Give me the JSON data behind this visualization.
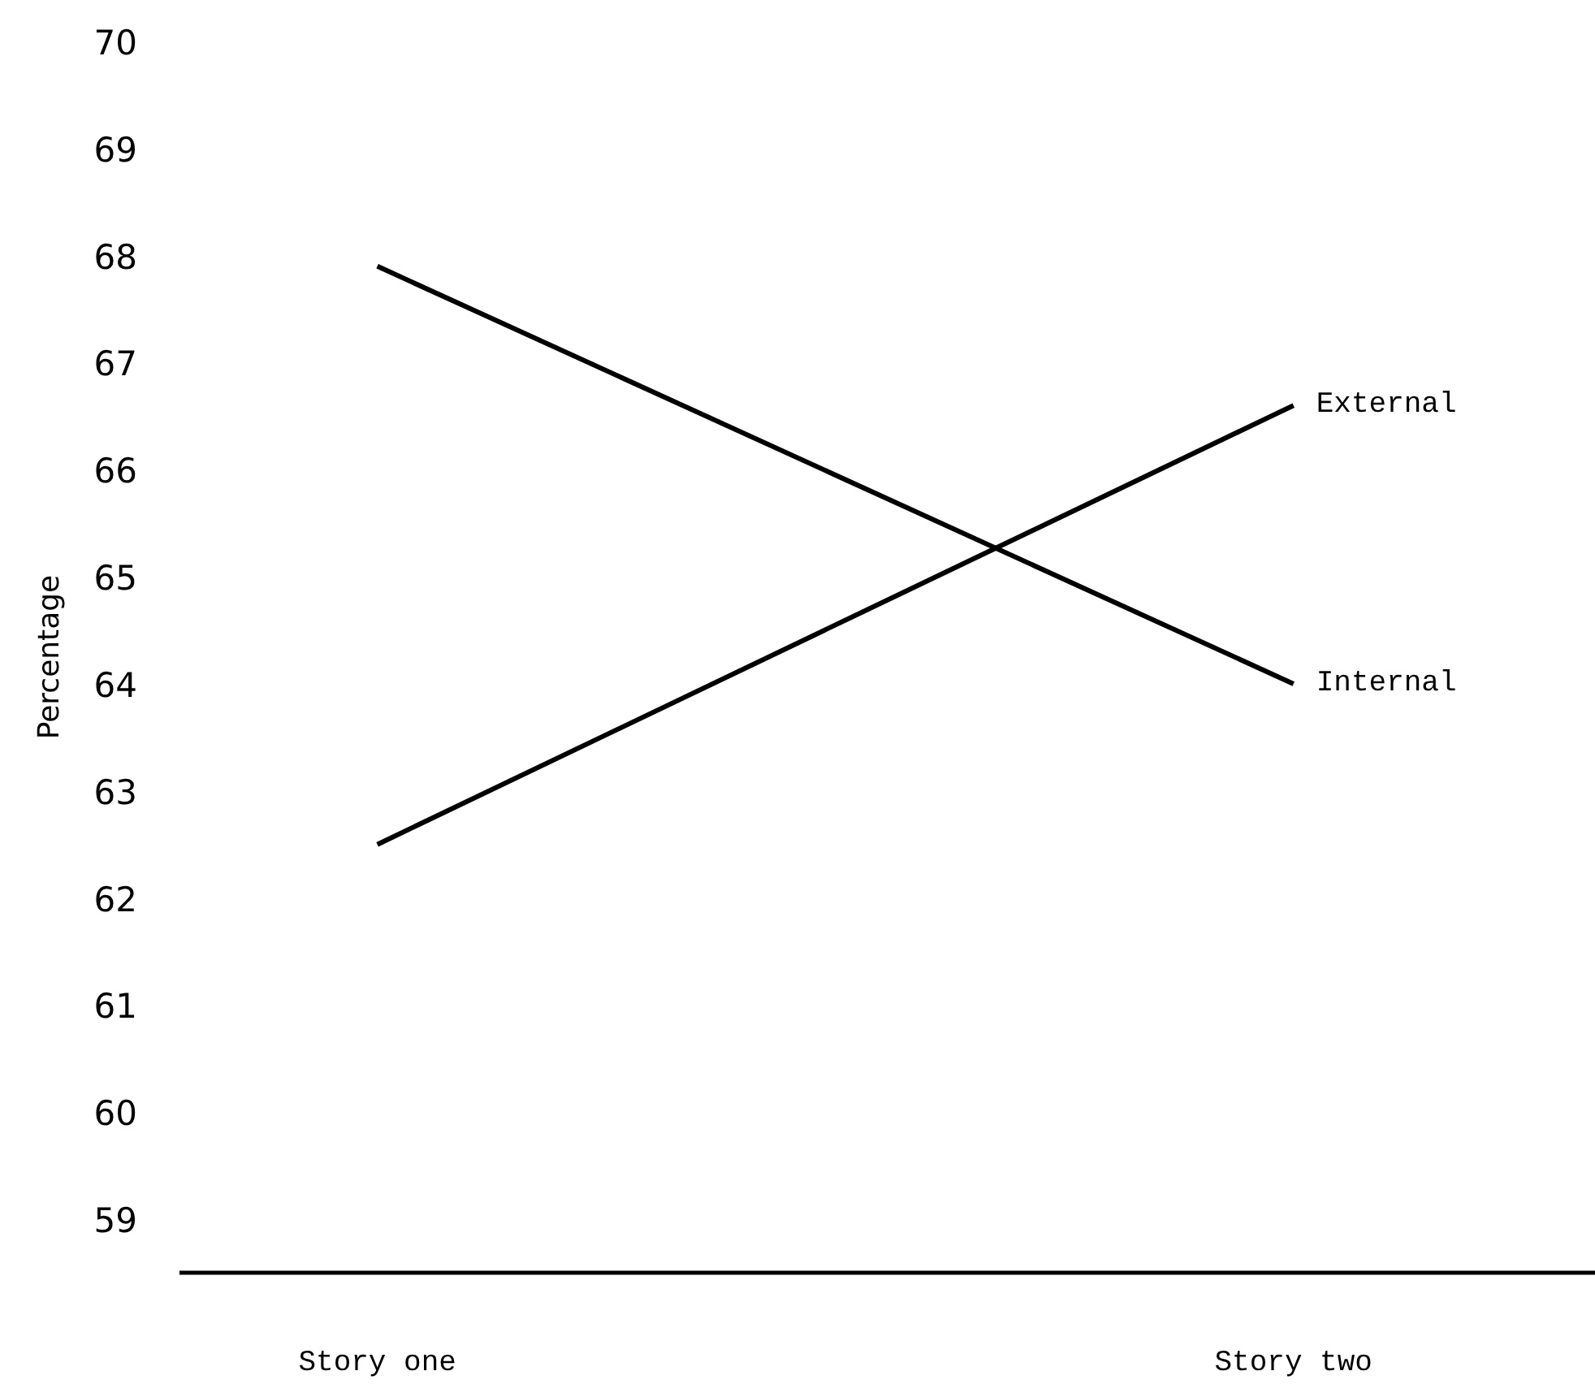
{
  "chart_data": {
    "type": "line",
    "ylabel": "Percentage",
    "categories": [
      "Story one",
      "Story two"
    ],
    "series": [
      {
        "name": "Internal",
        "color": "#000000",
        "values": [
          67.9,
          64.0
        ]
      },
      {
        "name": "External",
        "color": "#000000",
        "values": [
          62.5,
          66.6
        ]
      }
    ],
    "ylim": [
      58.5,
      70
    ],
    "yticks": [
      59,
      60,
      61,
      62,
      63,
      64,
      65,
      66,
      67,
      68,
      69,
      70
    ],
    "grid": false,
    "legend": false,
    "marker": "none",
    "line_style": "solid"
  }
}
